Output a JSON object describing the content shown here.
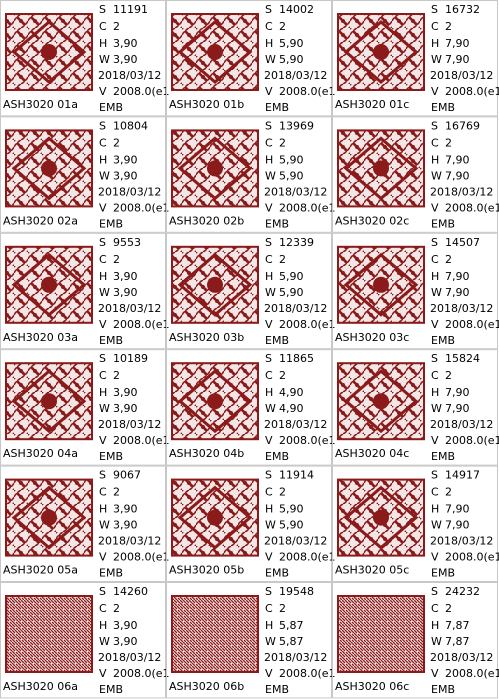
{
  "labels": {
    "s": "S",
    "c": "C",
    "h": "H",
    "w": "W",
    "v": "V"
  },
  "cells": [
    {
      "name": "ASH3020 01a",
      "s": "11191",
      "c": "2",
      "h": "3,90",
      "w": "3,90",
      "date": "2018/03/12",
      "v": "2008.0(e1",
      "format": "EMB"
    },
    {
      "name": "ASH3020 01b",
      "s": "14002",
      "c": "2",
      "h": "5,90",
      "w": "5,90",
      "date": "2018/03/12",
      "v": "2008.0(e1",
      "format": "EMB"
    },
    {
      "name": "ASH3020 01c",
      "s": "16732",
      "c": "2",
      "h": "7,90",
      "w": "7,90",
      "date": "2018/03/12",
      "v": "2008.0(e1",
      "format": "EMB"
    },
    {
      "name": "ASH3020 02a",
      "s": "10804",
      "c": "2",
      "h": "3,90",
      "w": "3,90",
      "date": "2018/03/12",
      "v": "2008.0(e1",
      "format": "EMB"
    },
    {
      "name": "ASH3020 02b",
      "s": "13969",
      "c": "2",
      "h": "5,90",
      "w": "5,90",
      "date": "2018/03/12",
      "v": "2008.0(e1",
      "format": "EMB"
    },
    {
      "name": "ASH3020 02c",
      "s": "16769",
      "c": "2",
      "h": "7,90",
      "w": "7,90",
      "date": "2018/03/12",
      "v": "2008.0(e1",
      "format": "EMB"
    },
    {
      "name": "ASH3020 03a",
      "s": "9553",
      "c": "2",
      "h": "3,90",
      "w": "3,90",
      "date": "2018/03/12",
      "v": "2008.0(e1",
      "format": "EMB"
    },
    {
      "name": "ASH3020 03b",
      "s": "12339",
      "c": "2",
      "h": "5,90",
      "w": "5,90",
      "date": "2018/03/12",
      "v": "2008.0(e1",
      "format": "EMB"
    },
    {
      "name": "ASH3020 03c",
      "s": "14507",
      "c": "2",
      "h": "7,90",
      "w": "7,90",
      "date": "2018/03/12",
      "v": "2008.0(e1",
      "format": "EMB"
    },
    {
      "name": "ASH3020 04a",
      "s": "10189",
      "c": "2",
      "h": "3,90",
      "w": "3,90",
      "date": "2018/03/12",
      "v": "2008.0(e1",
      "format": "EMB"
    },
    {
      "name": "ASH3020 04b",
      "s": "11865",
      "c": "2",
      "h": "4,90",
      "w": "4,90",
      "date": "2018/03/12",
      "v": "2008.0(e1",
      "format": "EMB"
    },
    {
      "name": "ASH3020 04c",
      "s": "15824",
      "c": "2",
      "h": "7,90",
      "w": "7,90",
      "date": "2018/03/12",
      "v": "2008.0(e1",
      "format": "EMB"
    },
    {
      "name": "ASH3020 05a",
      "s": "9067",
      "c": "2",
      "h": "3,90",
      "w": "3,90",
      "date": "2018/03/12",
      "v": "2008.0(e1",
      "format": "EMB"
    },
    {
      "name": "ASH3020 05b",
      "s": "11914",
      "c": "2",
      "h": "5,90",
      "w": "5,90",
      "date": "2018/03/12",
      "v": "2008.0(e1",
      "format": "EMB"
    },
    {
      "name": "ASH3020 05c",
      "s": "14917",
      "c": "2",
      "h": "7,90",
      "w": "7,90",
      "date": "2018/03/12",
      "v": "2008.0(e1",
      "format": "EMB"
    },
    {
      "name": "ASH3020 06a",
      "s": "14260",
      "c": "2",
      "h": "3,90",
      "w": "3,90",
      "date": "2018/03/12",
      "v": "2008.0(e1",
      "format": "EMB"
    },
    {
      "name": "ASH3020 06b",
      "s": "19548",
      "c": "2",
      "h": "5,87",
      "w": "5,87",
      "date": "2018/03/12",
      "v": "2008.0(e1",
      "format": "EMB"
    },
    {
      "name": "ASH3020 06c",
      "s": "24232",
      "c": "2",
      "h": "7,87",
      "w": "7,87",
      "date": "2018/03/12",
      "v": "2008.0(e1",
      "format": "EMB"
    }
  ]
}
